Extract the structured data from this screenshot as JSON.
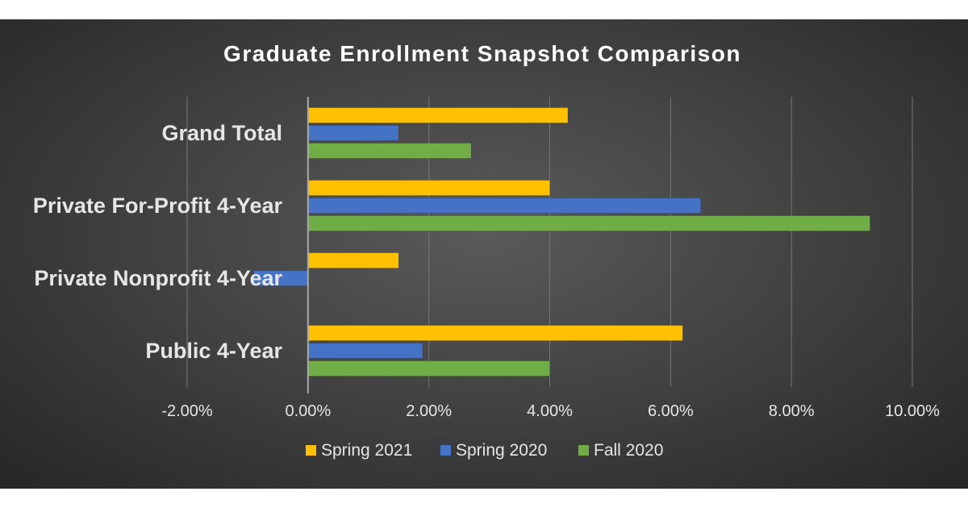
{
  "chart_data": {
    "type": "bar",
    "orientation": "horizontal",
    "title": "Graduate Enrollment Snapshot Comparison",
    "categories": [
      "Grand Total",
      "Private For-Profit 4-Year",
      "Private Nonprofit 4-Year",
      "Public 4-Year"
    ],
    "series": [
      {
        "name": "Spring 2021",
        "color": "#FFC000",
        "values": [
          4.3,
          4.0,
          1.5,
          6.2
        ]
      },
      {
        "name": "Spring 2020",
        "color": "#4472C4",
        "values": [
          1.5,
          6.5,
          -0.9,
          1.9
        ]
      },
      {
        "name": "Fall 2020",
        "color": "#70AD47",
        "values": [
          2.7,
          9.3,
          null,
          4.0
        ]
      }
    ],
    "xlim": [
      -2,
      10
    ],
    "ticks": [
      -2,
      0,
      2,
      4,
      6,
      8,
      10
    ],
    "tick_labels": [
      "-2.00%",
      "0.00%",
      "2.00%",
      "4.00%",
      "6.00%",
      "8.00%",
      "10.00%"
    ],
    "xlabel": "",
    "ylabel": "",
    "grid": true,
    "legend_position": "bottom"
  }
}
